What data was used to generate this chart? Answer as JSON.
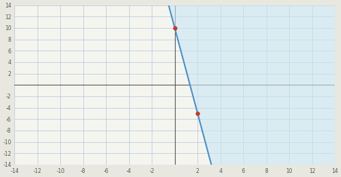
{
  "title": "",
  "xlim": [
    -14,
    14
  ],
  "ylim": [
    -14,
    14
  ],
  "xticks": [
    -14,
    -12,
    -10,
    -8,
    -6,
    -4,
    -2,
    2,
    4,
    6,
    8,
    10,
    12,
    14
  ],
  "yticks": [
    -14,
    -12,
    -10,
    -8,
    -6,
    -4,
    -2,
    2,
    4,
    6,
    8,
    10,
    12,
    14
  ],
  "point1": [
    0,
    10
  ],
  "point2": [
    2,
    -5
  ],
  "slope": -7.5,
  "y_intercept": 10,
  "line_color": "#4a90c4",
  "shade_color": "#c8e6f5",
  "shade_alpha": 0.6,
  "point_color": "#c0392b",
  "grid_color": "#b0c4d8",
  "bg_color": "#f5f5f0",
  "axis_color": "#555555",
  "tick_fontsize": 5.5,
  "figure_bg": "#e8e8e0"
}
